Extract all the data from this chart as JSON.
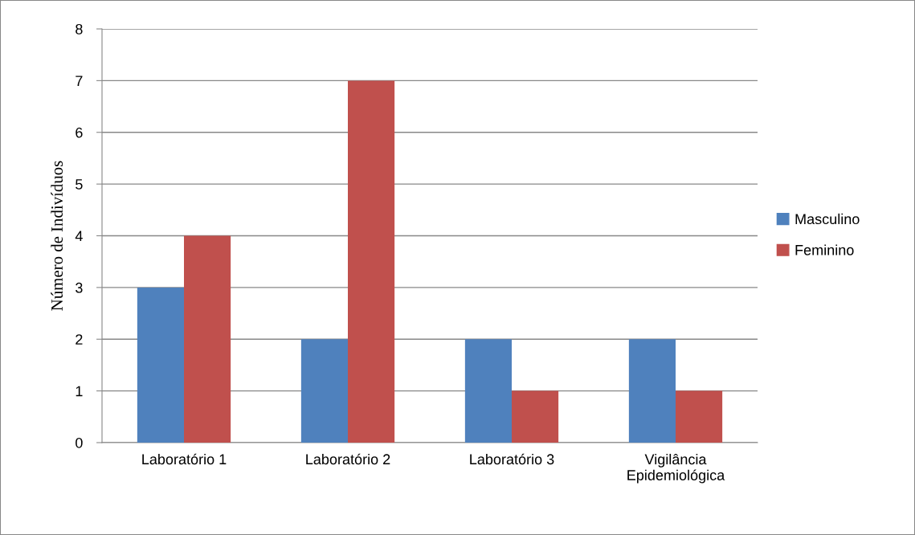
{
  "chart_data": {
    "type": "bar",
    "ylabel": "Número de Indivíduos",
    "categories": [
      "Laboratório 1",
      "Laboratório 2",
      "Laboratório 3",
      "Vigilância\nEpidemiológica"
    ],
    "series": [
      {
        "name": "Masculino",
        "color": "#4f81bd",
        "values": [
          3,
          2,
          2,
          2
        ]
      },
      {
        "name": "Feminino",
        "color": "#c0504d",
        "values": [
          4,
          7,
          1,
          1
        ]
      }
    ],
    "ylim": [
      0,
      8
    ],
    "yticks": [
      0,
      1,
      2,
      3,
      4,
      5,
      6,
      7,
      8
    ],
    "grid": "y",
    "legend": "right"
  }
}
